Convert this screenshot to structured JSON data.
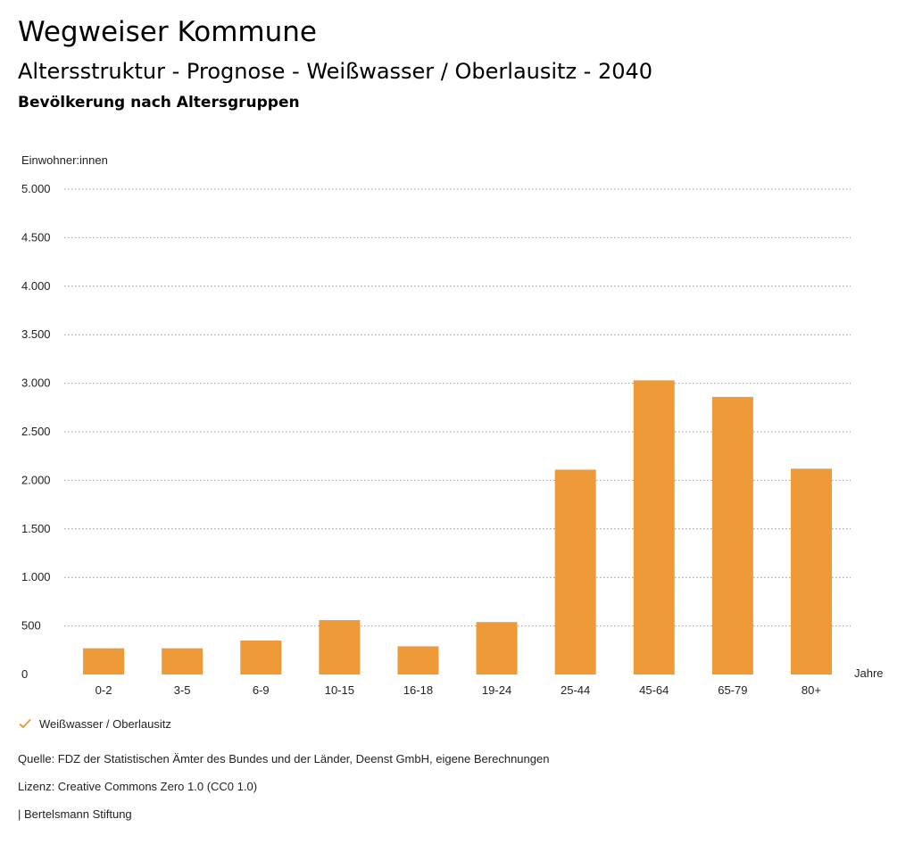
{
  "header": {
    "title": "Wegweiser Kommune",
    "subtitle": "Altersstruktur - Prognose - Weißwasser / Oberlausitz - 2040",
    "caption": "Bevölkerung nach Altersgruppen"
  },
  "chart_data": {
    "type": "bar",
    "title": "",
    "ylabel": "Einwohner:innen",
    "xlabel": "Jahre",
    "ylim": [
      0,
      5000
    ],
    "yticks": [
      0,
      500,
      1000,
      1500,
      2000,
      2500,
      3000,
      3500,
      4000,
      4500,
      5000
    ],
    "ytick_labels": [
      "0",
      "500",
      "1.000",
      "1.500",
      "2.000",
      "2.500",
      "3.000",
      "3.500",
      "4.000",
      "4.500",
      "5.000"
    ],
    "grid": true,
    "legend_position": "bottom-left",
    "categories": [
      "0-2",
      "3-5",
      "6-9",
      "10-15",
      "16-18",
      "19-24",
      "25-44",
      "45-64",
      "65-79",
      "80+"
    ],
    "series": [
      {
        "name": "Weißwasser / Oberlausitz",
        "color": "#ee9a38",
        "values": [
          270,
          270,
          350,
          560,
          290,
          540,
          2110,
          3030,
          2860,
          2120
        ]
      }
    ]
  },
  "footer": {
    "source": "Quelle: FDZ der Statistischen Ämter des Bundes und der Länder, Deenst GmbH, eigene Berechnungen",
    "license": "Lizenz: Creative Commons Zero 1.0 (CC0 1.0)",
    "publisher": "| Bertelsmann Stiftung"
  },
  "legend": {
    "icon": "check-icon"
  }
}
